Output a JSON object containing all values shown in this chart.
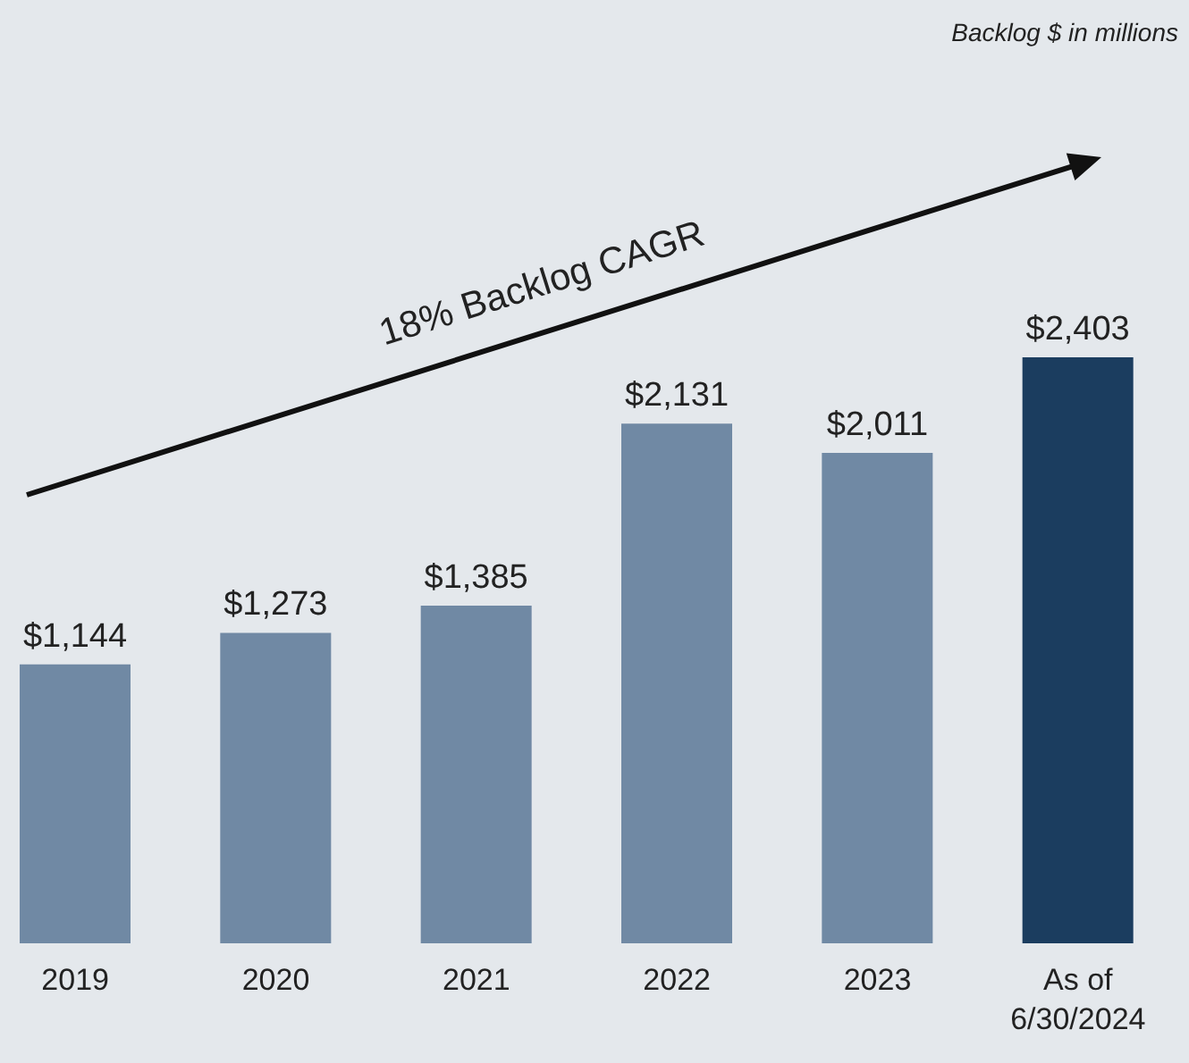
{
  "chart_data": {
    "type": "bar",
    "categories": [
      "2019",
      "2020",
      "2021",
      "2022",
      "2023",
      "As of 6/30/2024"
    ],
    "values": [
      1144,
      1273,
      1385,
      2131,
      2011,
      2403
    ],
    "colors": [
      "#7089a4",
      "#7089a4",
      "#7089a4",
      "#7089a4",
      "#7089a4",
      "#1b3d5f"
    ],
    "value_labels": [
      "$1,144",
      "$1,273",
      "$1,385",
      "$2,131",
      "$2,011",
      "$2,403"
    ],
    "annotations": [
      "Backlog $ in millions",
      "18% Backlog CAGR"
    ],
    "grid": false,
    "legend": false
  }
}
